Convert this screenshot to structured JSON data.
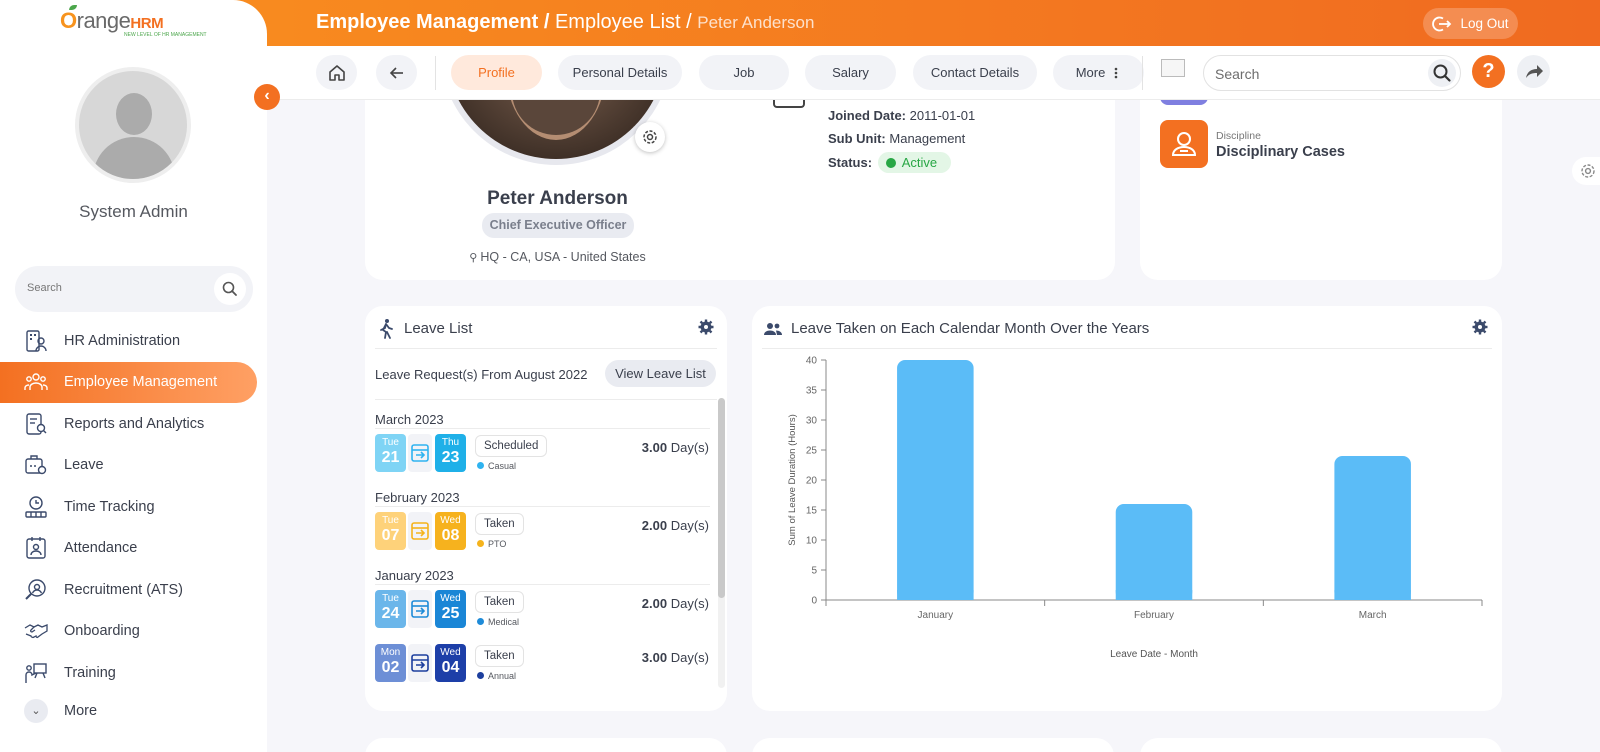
{
  "app": {
    "logo_main": "range",
    "logo_o": "O",
    "logo_hrm": "HRM",
    "logo_tagline": "NEW LEVEL OF HR MANAGEMENT"
  },
  "header": {
    "crumb1": "Employee Management",
    "crumb2": "Employee List",
    "crumb3": "Peter Anderson",
    "sep": " / ",
    "logout": "Log Out"
  },
  "sidebar": {
    "user": "System Admin",
    "search_placeholder": "Search",
    "items": [
      {
        "label": "HR Administration",
        "icon": "hr-admin-icon"
      },
      {
        "label": "Employee Management",
        "icon": "employees-icon",
        "active": true
      },
      {
        "label": "Reports and Analytics",
        "icon": "reports-icon"
      },
      {
        "label": "Leave",
        "icon": "leave-icon"
      },
      {
        "label": "Time Tracking",
        "icon": "time-icon"
      },
      {
        "label": "Attendance",
        "icon": "attendance-icon"
      },
      {
        "label": "Recruitment (ATS)",
        "icon": "recruitment-icon"
      },
      {
        "label": "Onboarding",
        "icon": "onboarding-icon"
      },
      {
        "label": "Training",
        "icon": "training-icon"
      }
    ],
    "more": "More"
  },
  "tabs": {
    "profile": "Profile",
    "personal": "Personal Details",
    "job": "Job",
    "salary": "Salary",
    "contact": "Contact Details",
    "more": "More",
    "search_placeholder": "Search"
  },
  "profile": {
    "name": "Peter Anderson",
    "title": "Chief Executive Officer",
    "location": "HQ - CA, USA - United States",
    "joined_label": "Joined Date:",
    "joined": "2011-01-01",
    "subunit_label": "Sub Unit:",
    "subunit": "Management",
    "status_label": "Status:",
    "status": "Active"
  },
  "side": {
    "discipline_label": "Discipline",
    "discipline_value": "Disciplinary Cases"
  },
  "leave_list": {
    "title": "Leave List",
    "request_text": "Leave Request(s) From August 2022",
    "view_button": "View Leave List",
    "unit": "Day(s)",
    "groups": [
      {
        "month": "March 2023",
        "from_day": "Tue",
        "from_date": "21",
        "to_day": "Thu",
        "to_date": "23",
        "status": "Scheduled",
        "type": "Casual",
        "type_color": "#2fb3f0",
        "from_color": "#7fd4f5",
        "to_color": "#1fb0e8",
        "duration": "3.00"
      },
      {
        "month": "February 2023",
        "from_day": "Tue",
        "from_date": "07",
        "to_day": "Wed",
        "to_date": "08",
        "status": "Taken",
        "type": "PTO",
        "type_color": "#f5b31c",
        "from_color": "#fed27a",
        "to_color": "#f6b21e",
        "duration": "2.00"
      },
      {
        "month": "January 2023",
        "from_day": "Tue",
        "from_date": "24",
        "to_day": "Wed",
        "to_date": "25",
        "status": "Taken",
        "type": "Medical",
        "type_color": "#1e8bd8",
        "from_color": "#6bb6ea",
        "to_color": "#1a86d6",
        "duration": "2.00"
      },
      {
        "month": "",
        "from_day": "Mon",
        "from_date": "02",
        "to_day": "Wed",
        "to_date": "04",
        "status": "Taken",
        "type": "Annual",
        "type_color": "#1d3f9e",
        "from_color": "#6d8fd6",
        "to_color": "#1d3fa8",
        "duration": "3.00"
      }
    ]
  },
  "chart_data": {
    "type": "bar",
    "title": "Leave Taken on Each Calendar Month Over the Years",
    "categories": [
      "January",
      "February",
      "March"
    ],
    "values": [
      40,
      16,
      24
    ],
    "xlabel": "Leave Date - Month",
    "ylabel": "Sum of Leave Duration (Hours)",
    "ylim": [
      0,
      40
    ],
    "yticks": [
      0,
      5,
      10,
      15,
      20,
      25,
      30,
      35,
      40
    ],
    "bar_color": "#5bbcf7",
    "grid": false
  }
}
